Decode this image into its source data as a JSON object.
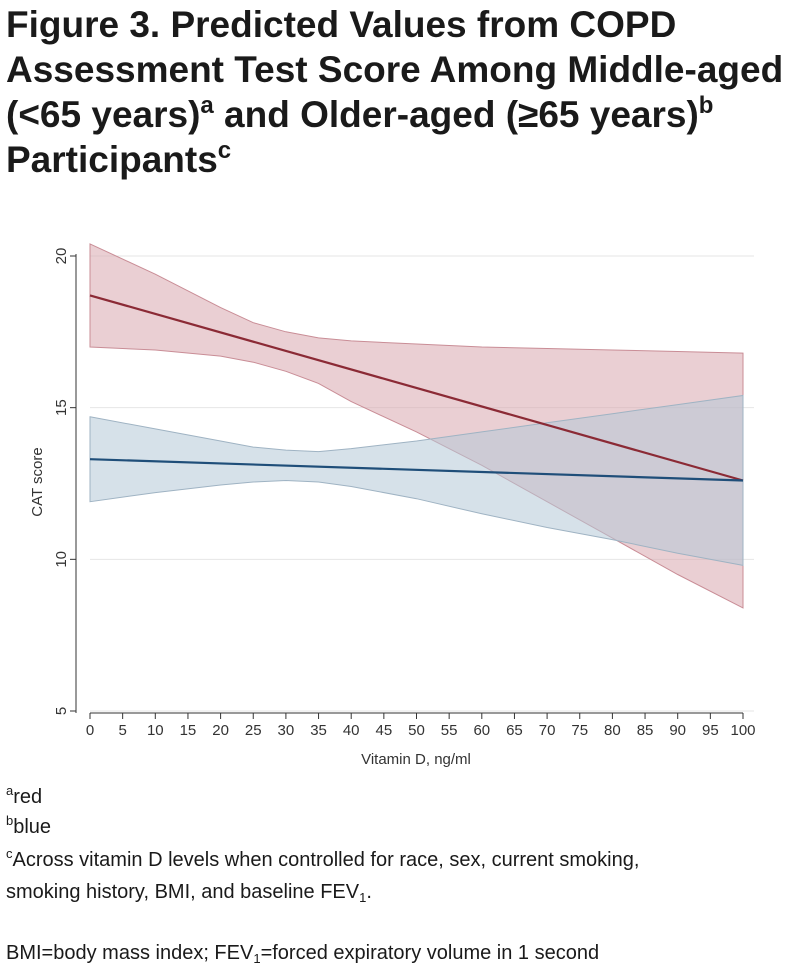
{
  "figure": {
    "title_part1": "Figure 3. Predicted Values from COPD Assessment Test Score Among Middle-aged (<65 years)",
    "title_sup1": "a",
    "title_part2": " and Older-aged (≥65 years)",
    "title_sup2": "b",
    "title_part3": " Participants",
    "title_sup3": "c"
  },
  "footnotes": {
    "a_marker": "a",
    "a_text": "red",
    "b_marker": "b",
    "b_text": "blue",
    "c_marker": "c",
    "c_text_line1": "Across vitamin D levels when controlled for race, sex, current smoking,",
    "c_text_line2_pre": "smoking history, BMI, and baseline FEV",
    "c_text_line2_sub": "1",
    "c_text_line2_post": ".",
    "abbrev_pre": "BMI=body mass index; FEV",
    "abbrev_sub": "1",
    "abbrev_post": "=forced expiratory volume in 1 second"
  },
  "chart_data": {
    "type": "line",
    "xlabel": "Vitamin D, ng/ml",
    "ylabel": "CAT score",
    "xlim": [
      0,
      100
    ],
    "ylim": [
      5,
      20
    ],
    "xticks": [
      0,
      5,
      10,
      15,
      20,
      25,
      30,
      35,
      40,
      45,
      50,
      55,
      60,
      65,
      70,
      75,
      80,
      85,
      90,
      95,
      100
    ],
    "yticks": [
      5,
      10,
      15,
      20
    ],
    "grid": true,
    "legend": "none",
    "colors": {
      "red_line": "#8b2a35",
      "red_band": "#d9a7ae",
      "blue_line": "#1f4e79",
      "blue_band": "#b5c8d7",
      "axis": "#333333",
      "grid": "#e6e6e6"
    },
    "series": [
      {
        "x": [
          0,
          100
        ],
        "values": [
          18.7,
          12.6
        ],
        "ci_x": [
          0,
          10,
          20,
          25,
          30,
          35,
          40,
          50,
          60,
          70,
          80,
          90,
          100
        ],
        "ci_upper": [
          20.4,
          19.4,
          18.3,
          17.8,
          17.5,
          17.3,
          17.2,
          17.1,
          17.0,
          16.95,
          16.9,
          16.85,
          16.8
        ],
        "ci_lower": [
          17.0,
          16.9,
          16.7,
          16.5,
          16.2,
          15.8,
          15.2,
          14.2,
          13.1,
          11.9,
          10.7,
          9.5,
          8.4
        ]
      },
      {
        "x": [
          0,
          100
        ],
        "values": [
          13.3,
          12.6
        ],
        "ci_x": [
          0,
          10,
          20,
          25,
          30,
          35,
          40,
          50,
          60,
          70,
          80,
          90,
          100
        ],
        "ci_upper": [
          14.7,
          14.3,
          13.9,
          13.7,
          13.6,
          13.55,
          13.65,
          13.9,
          14.2,
          14.5,
          14.8,
          15.1,
          15.4
        ],
        "ci_lower": [
          11.9,
          12.2,
          12.45,
          12.55,
          12.6,
          12.55,
          12.4,
          12.0,
          11.5,
          11.05,
          10.65,
          10.2,
          9.8
        ]
      }
    ]
  }
}
